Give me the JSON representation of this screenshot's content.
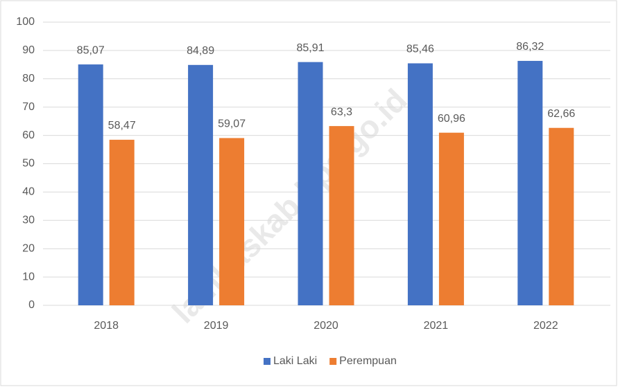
{
  "chart_data": {
    "type": "bar",
    "watermark": "lambaskab.bps.go.id",
    "categories": [
      "2018",
      "2019",
      "2020",
      "2021",
      "2022"
    ],
    "series": [
      {
        "name": "Laki Laki",
        "color": "#4472c4",
        "values": [
          85.07,
          84.89,
          85.91,
          85.46,
          86.32
        ],
        "value_labels": [
          "85,07",
          "84,89",
          "85,91",
          "85,46",
          "86,32"
        ]
      },
      {
        "name": "Perempuan",
        "color": "#ed7d31",
        "values": [
          58.47,
          59.07,
          63.3,
          60.96,
          62.66
        ],
        "value_labels": [
          "58,47",
          "59,07",
          "63,3",
          "60,96",
          "62,66"
        ]
      }
    ],
    "ylim": [
      0,
      100
    ],
    "yticks": [
      0,
      10,
      20,
      30,
      40,
      50,
      60,
      70,
      80,
      90,
      100
    ],
    "grid": true,
    "legend": "bottom"
  }
}
